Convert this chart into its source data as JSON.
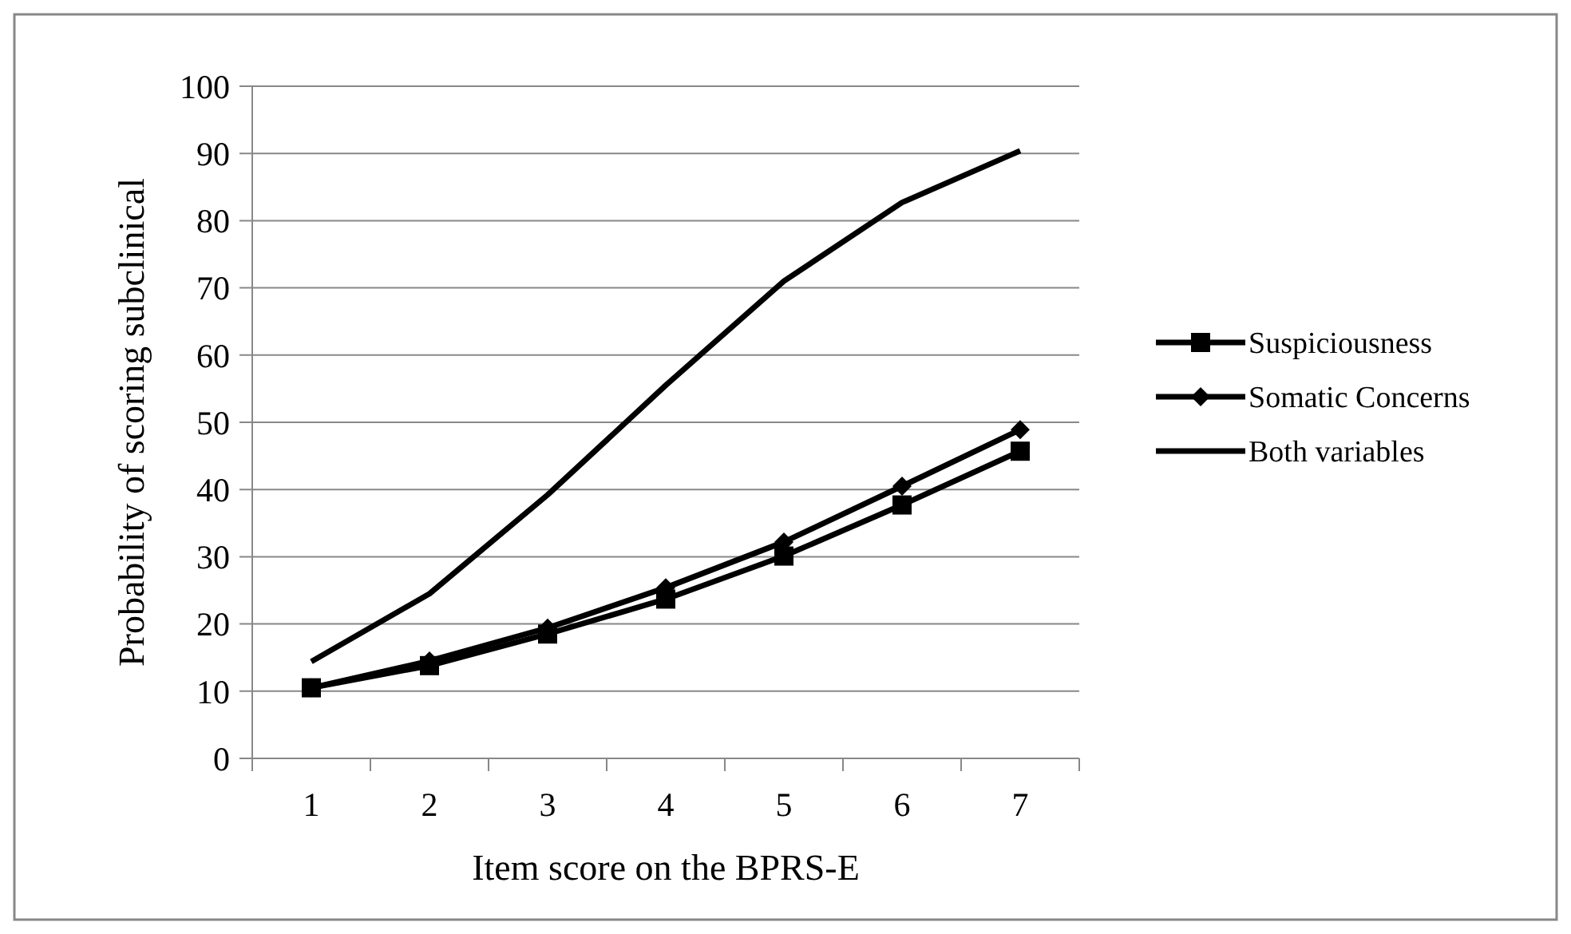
{
  "chart_data": {
    "type": "line",
    "xlabel": "Item score on the BPRS-E",
    "ylabel": "Probability of scoring subclinical",
    "categories": [
      "1",
      "2",
      "3",
      "4",
      "5",
      "6",
      "7"
    ],
    "series": [
      {
        "name": "Suspiciousness",
        "color": "#000000",
        "marker": "square",
        "values": [
          10.5,
          13.8,
          18.5,
          23.7,
          30.1,
          37.7,
          45.7
        ]
      },
      {
        "name": "Somatic Concerns",
        "color": "#000000",
        "marker": "diamond",
        "values": [
          10.5,
          14.5,
          19.4,
          25.4,
          32.2,
          40.5,
          48.9
        ]
      },
      {
        "name": "Both variables",
        "color": "#000000",
        "marker": "none",
        "values": [
          14.4,
          24.5,
          39.2,
          55.5,
          71.0,
          82.7,
          90.4
        ]
      }
    ],
    "ylim": [
      0,
      100
    ],
    "yticks": [
      0,
      10,
      20,
      30,
      40,
      50,
      60,
      70,
      80,
      90,
      100
    ],
    "grid": "y",
    "legend": "right"
  }
}
